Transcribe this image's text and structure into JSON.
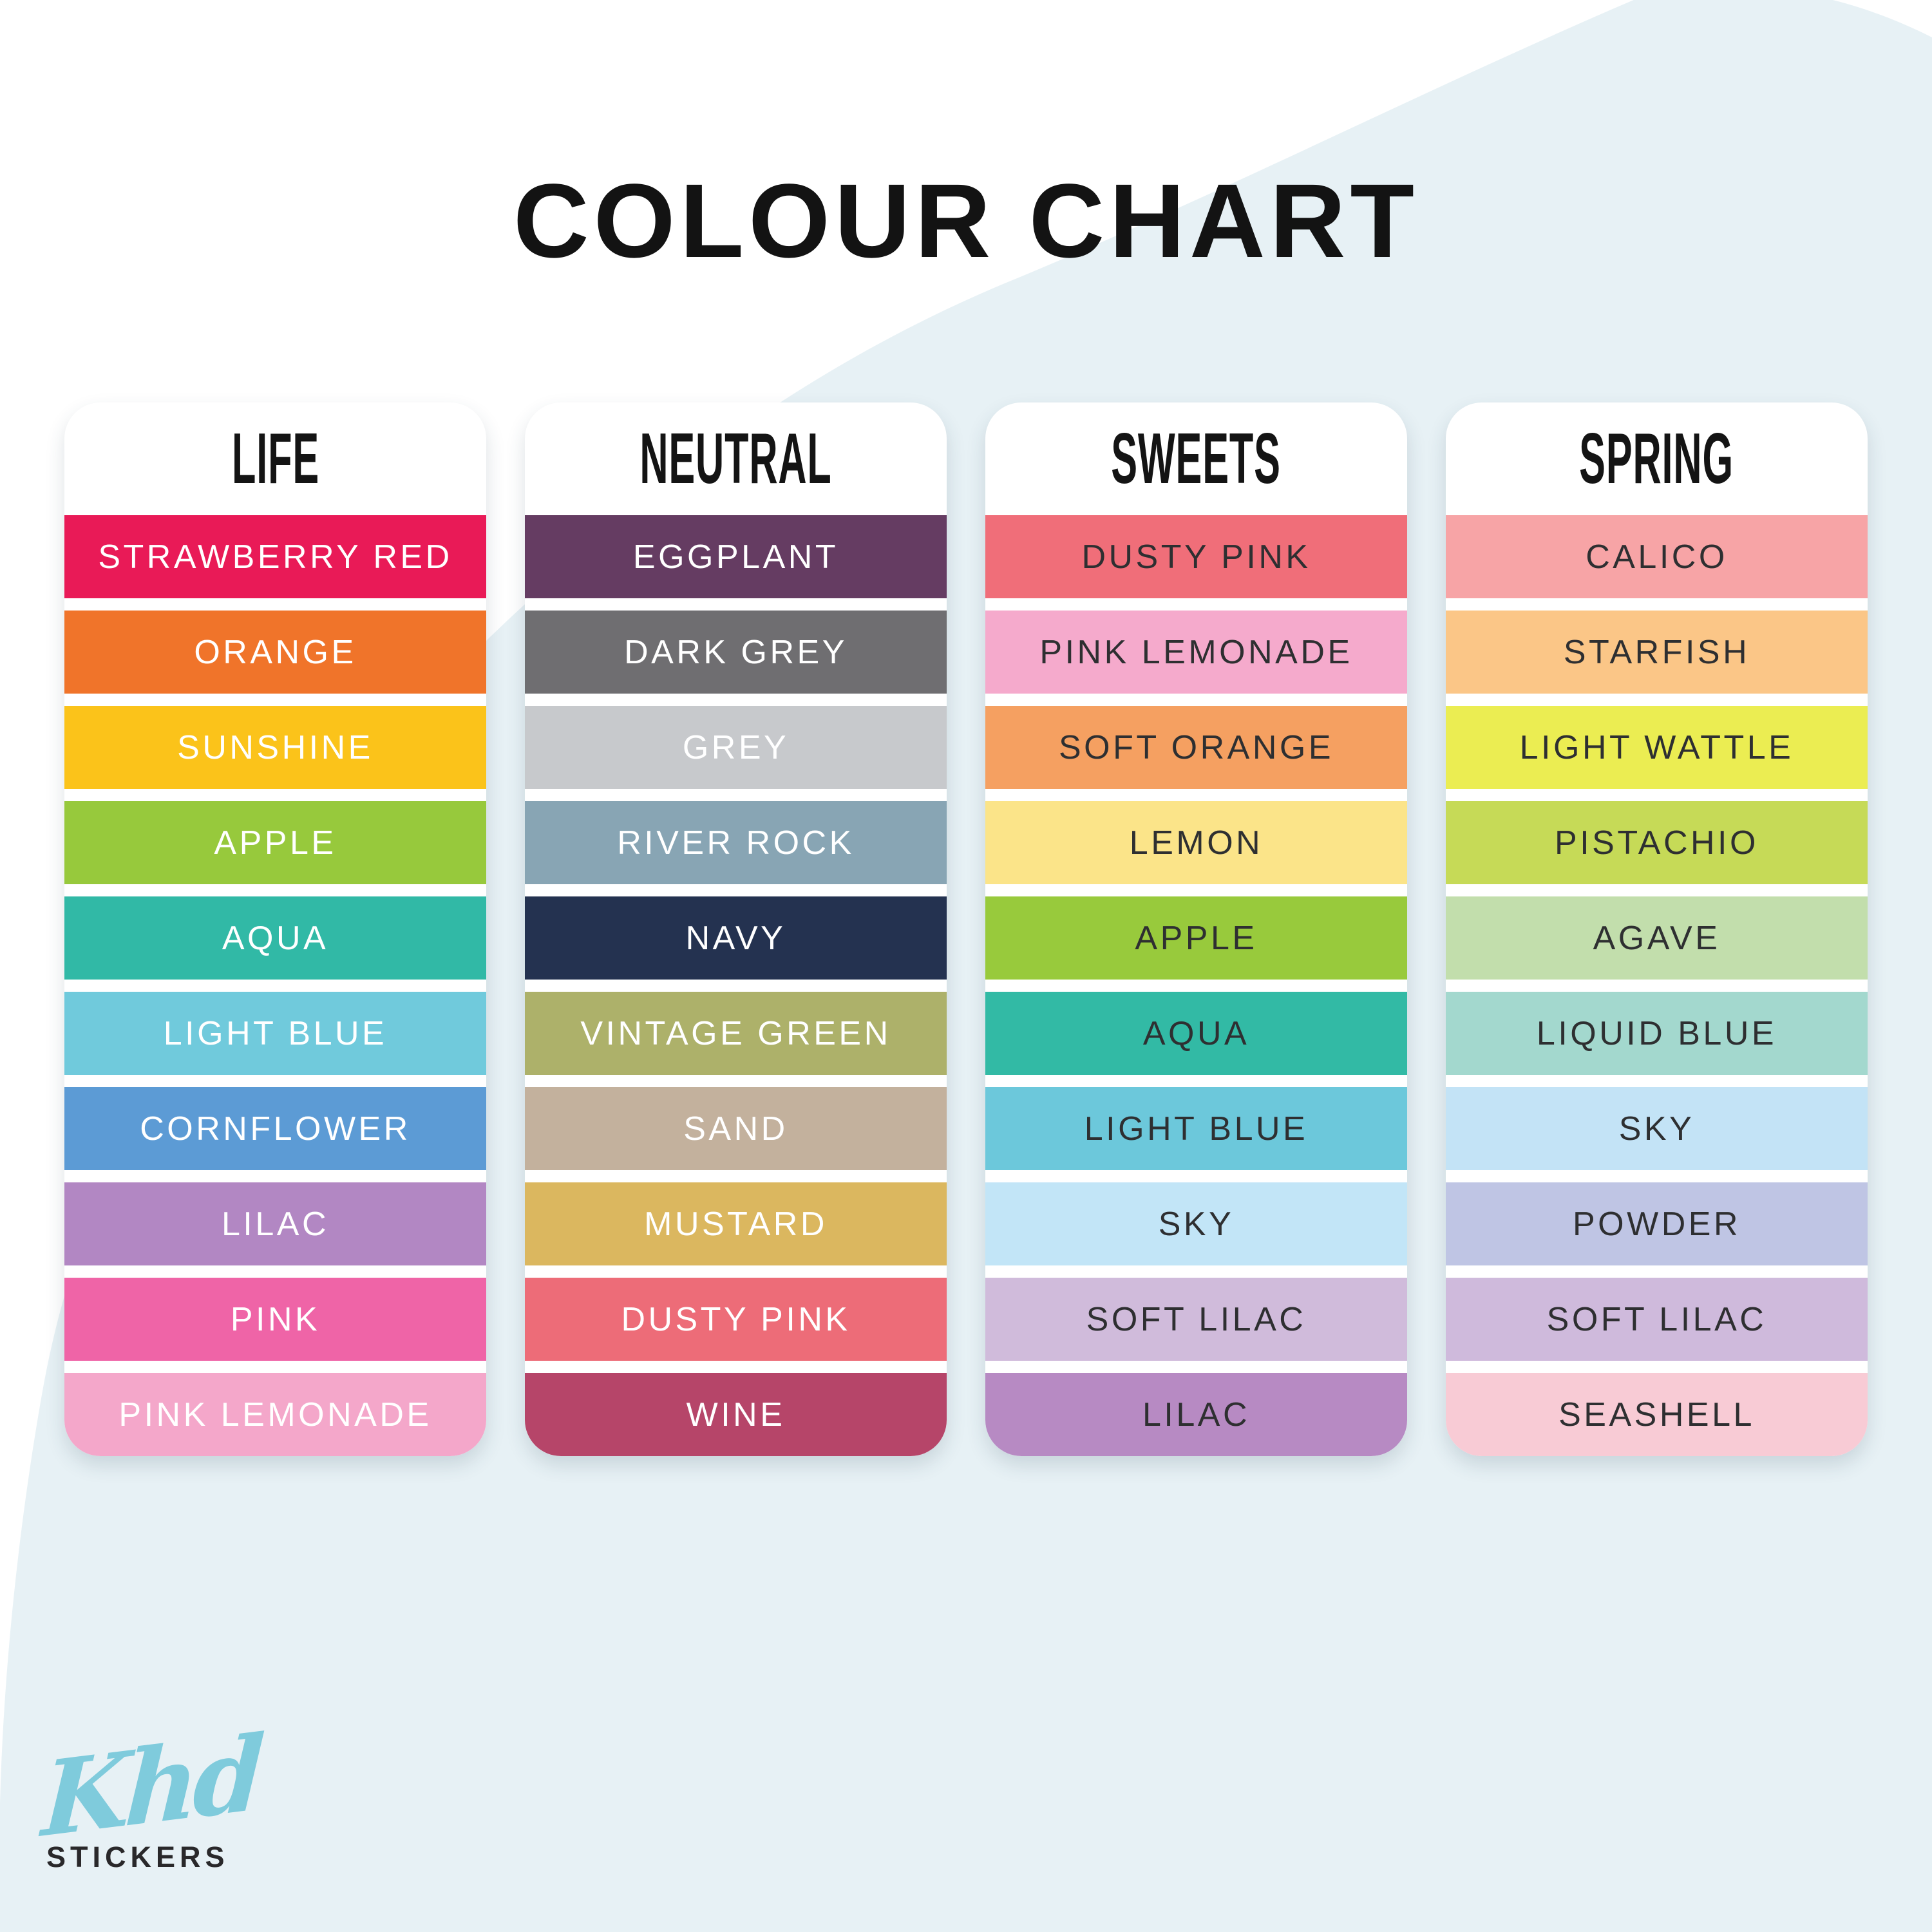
{
  "page_title": "COLOUR CHART",
  "background": {
    "page": "#FFFFFF",
    "wave": "#E7F1F5"
  },
  "text_colors": {
    "light": "#FFFFFF",
    "dark": "#2E2F31"
  },
  "brand": {
    "script": "Khd",
    "subtitle": "STICKERS",
    "script_color": "#7FCBDC",
    "subtitle_color": "#29282A"
  },
  "chart_data": {
    "type": "table",
    "title": "COLOUR CHART",
    "palettes": [
      {
        "name": "LIFE",
        "label_style": "light",
        "colours": [
          {
            "name": "STRAWBERRY RED",
            "hex": "#E91A57"
          },
          {
            "name": "ORANGE",
            "hex": "#F0742A"
          },
          {
            "name": "SUNSHINE",
            "hex": "#FBC31A"
          },
          {
            "name": "APPLE",
            "hex": "#97C93C"
          },
          {
            "name": "AQUA",
            "hex": "#31B9A6"
          },
          {
            "name": "LIGHT BLUE",
            "hex": "#70CADC"
          },
          {
            "name": "CORNFLOWER",
            "hex": "#5C9BD5"
          },
          {
            "name": "LILAC",
            "hex": "#B287C3"
          },
          {
            "name": "PINK",
            "hex": "#EF64A7"
          },
          {
            "name": "PINK LEMONADE",
            "hex": "#F4A7CA"
          }
        ]
      },
      {
        "name": "NEUTRAL",
        "label_style": "light",
        "colours": [
          {
            "name": "EGGPLANT",
            "hex": "#653C62"
          },
          {
            "name": "DARK GREY",
            "hex": "#6F6E71"
          },
          {
            "name": "GREY",
            "hex": "#C7C9CC"
          },
          {
            "name": "RIVER ROCK",
            "hex": "#88A5B4"
          },
          {
            "name": "NAVY",
            "hex": "#243250"
          },
          {
            "name": "VINTAGE GREEN",
            "hex": "#ADB16A"
          },
          {
            "name": "SAND",
            "hex": "#C3B19D"
          },
          {
            "name": "MUSTARD",
            "hex": "#DBB75F"
          },
          {
            "name": "DUSTY PINK",
            "hex": "#ED6C78"
          },
          {
            "name": "WINE",
            "hex": "#B64569"
          }
        ]
      },
      {
        "name": "SWEETS",
        "label_style": "dark",
        "colours": [
          {
            "name": "DUSTY PINK",
            "hex": "#F06E79"
          },
          {
            "name": "PINK LEMONADE",
            "hex": "#F5AACC"
          },
          {
            "name": "SOFT ORANGE",
            "hex": "#F5A061"
          },
          {
            "name": "LEMON",
            "hex": "#FBE489"
          },
          {
            "name": "APPLE",
            "hex": "#98CA3C"
          },
          {
            "name": "AQUA",
            "hex": "#32BAA5"
          },
          {
            "name": "LIGHT BLUE",
            "hex": "#6CC8DB"
          },
          {
            "name": "SKY",
            "hex": "#C2E5F7"
          },
          {
            "name": "SOFT LILAC",
            "hex": "#D0BBDB"
          },
          {
            "name": "LILAC",
            "hex": "#B78AC3"
          }
        ]
      },
      {
        "name": "SPRING",
        "label_style": "dark",
        "colours": [
          {
            "name": "CALICO",
            "hex": "#F7A4A6"
          },
          {
            "name": "STARFISH",
            "hex": "#FBC687"
          },
          {
            "name": "LIGHT WATTLE",
            "hex": "#EBED52"
          },
          {
            "name": "PISTACHIO",
            "hex": "#C6DA57"
          },
          {
            "name": "AGAVE",
            "hex": "#C2DEAC"
          },
          {
            "name": "LIQUID BLUE",
            "hex": "#A3D8CE"
          },
          {
            "name": "SKY",
            "hex": "#C3E3F6"
          },
          {
            "name": "POWDER",
            "hex": "#BFC5E4"
          },
          {
            "name": "SOFT LILAC",
            "hex": "#CFBADC"
          },
          {
            "name": "SEASHELL",
            "hex": "#F8CBD5"
          }
        ]
      }
    ]
  }
}
